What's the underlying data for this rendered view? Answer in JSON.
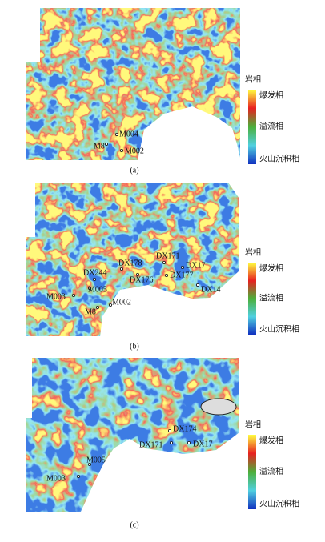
{
  "panels": [
    {
      "label": "(a)",
      "legend": {
        "title": "岩相",
        "labels": [
          "爆发相",
          "溢流相",
          "火山沉积相"
        ]
      },
      "wells": [
        "M004",
        "M8",
        "M002"
      ]
    },
    {
      "label": "(b)",
      "legend": {
        "title": "岩相",
        "labels": [
          "爆发相",
          "溢流相",
          "火山沉积相"
        ]
      },
      "wells": [
        "DX178",
        "DX171",
        "DX17",
        "DX176",
        "DX177",
        "DX244",
        "M005",
        "M003",
        "M8",
        "M002",
        "DX14"
      ]
    },
    {
      "label": "(c)",
      "legend": {
        "title": "岩相",
        "labels": [
          "爆发相",
          "溢流相",
          "火山沉积相"
        ]
      },
      "wells": [
        "DX174",
        "DX171",
        "DX17",
        "M005",
        "M003"
      ]
    }
  ]
}
